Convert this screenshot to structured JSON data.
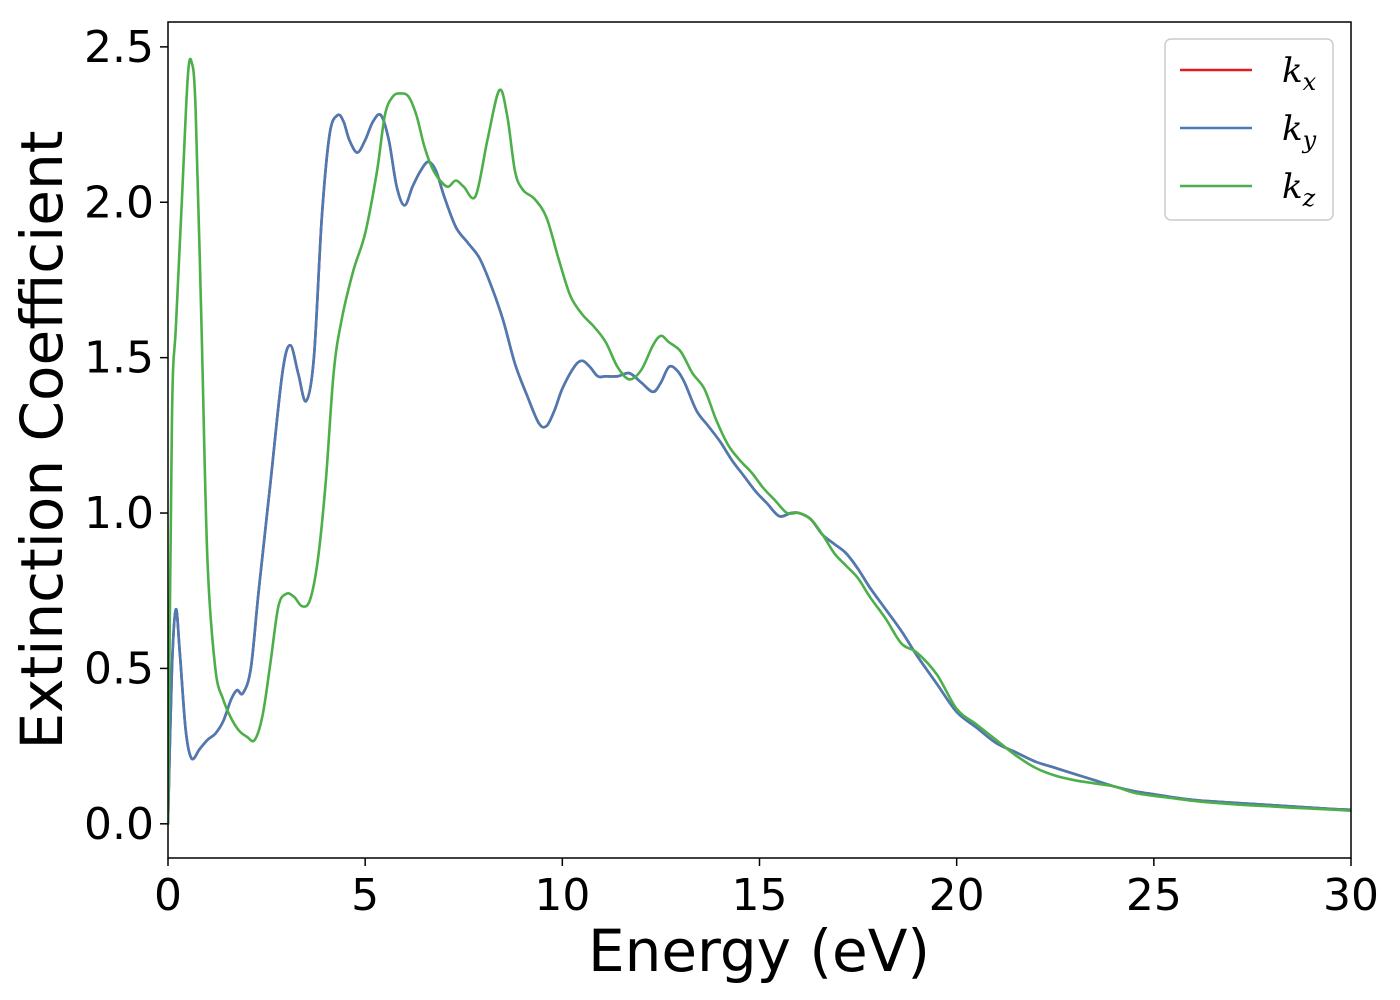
{
  "chart_data": {
    "type": "line",
    "title": "",
    "xlabel": "Energy (eV)",
    "ylabel": "Extinction Coefficient",
    "xlim": [
      0,
      30
    ],
    "ylim": [
      -0.11,
      2.58
    ],
    "xticks": [
      0,
      5,
      10,
      15,
      20,
      25,
      30
    ],
    "xtick_labels": [
      "0",
      "5",
      "10",
      "15",
      "20",
      "25",
      "30"
    ],
    "yticks": [
      0.0,
      0.5,
      1.0,
      1.5,
      2.0,
      2.5
    ],
    "ytick_labels": [
      "0.0",
      "0.5",
      "1.0",
      "1.5",
      "2.0",
      "2.5"
    ],
    "grid": false,
    "legend_position": "top-right",
    "series": [
      {
        "name": "k_x",
        "label_base": "k",
        "label_sub": "x",
        "color": "#e41a1c",
        "x": [
          0,
          0.1,
          0.2,
          0.3,
          0.45,
          0.6,
          0.8,
          1.0,
          1.2,
          1.4,
          1.6,
          1.75,
          1.9,
          2.1,
          2.3,
          2.6,
          2.9,
          3.1,
          3.3,
          3.5,
          3.7,
          3.9,
          4.1,
          4.3,
          4.45,
          4.6,
          4.8,
          5.0,
          5.2,
          5.4,
          5.6,
          5.8,
          6.0,
          6.2,
          6.4,
          6.6,
          6.8,
          7.0,
          7.3,
          7.6,
          7.9,
          8.2,
          8.5,
          8.8,
          9.1,
          9.4,
          9.6,
          9.8,
          10.0,
          10.3,
          10.5,
          10.7,
          10.9,
          11.1,
          11.4,
          11.7,
          12.0,
          12.3,
          12.5,
          12.7,
          12.9,
          13.1,
          13.4,
          13.7,
          14.0,
          14.3,
          14.6,
          14.9,
          15.2,
          15.5,
          15.8,
          16.0,
          16.3,
          16.6,
          16.9,
          17.2,
          17.5,
          17.8,
          18.2,
          18.6,
          19.0,
          19.5,
          20.0,
          20.5,
          21.0,
          21.5,
          22.0,
          22.5,
          23.0,
          23.5,
          24.0,
          24.5,
          25.0,
          25.5,
          26.0,
          26.5,
          27.0,
          27.5,
          28.0,
          28.5,
          29.0,
          29.5,
          30.0
        ],
        "y": [
          0.0,
          0.5,
          0.69,
          0.55,
          0.3,
          0.21,
          0.24,
          0.27,
          0.29,
          0.33,
          0.4,
          0.43,
          0.42,
          0.5,
          0.75,
          1.1,
          1.45,
          1.54,
          1.45,
          1.36,
          1.5,
          1.95,
          2.22,
          2.28,
          2.26,
          2.2,
          2.16,
          2.2,
          2.26,
          2.28,
          2.2,
          2.05,
          1.99,
          2.05,
          2.1,
          2.13,
          2.1,
          2.02,
          1.92,
          1.87,
          1.82,
          1.73,
          1.62,
          1.48,
          1.38,
          1.29,
          1.28,
          1.33,
          1.4,
          1.47,
          1.49,
          1.47,
          1.44,
          1.44,
          1.44,
          1.45,
          1.42,
          1.39,
          1.42,
          1.47,
          1.46,
          1.42,
          1.33,
          1.28,
          1.23,
          1.17,
          1.12,
          1.07,
          1.03,
          0.99,
          1.0,
          1.0,
          0.98,
          0.93,
          0.9,
          0.87,
          0.82,
          0.76,
          0.69,
          0.62,
          0.54,
          0.45,
          0.36,
          0.31,
          0.26,
          0.23,
          0.2,
          0.18,
          0.16,
          0.14,
          0.12,
          0.105,
          0.095,
          0.085,
          0.077,
          0.072,
          0.068,
          0.064,
          0.06,
          0.056,
          0.052,
          0.048,
          0.045
        ]
      },
      {
        "name": "k_y",
        "label_base": "k",
        "label_sub": "y",
        "color": "#4a7bb5",
        "x": [
          0,
          0.1,
          0.2,
          0.3,
          0.45,
          0.6,
          0.8,
          1.0,
          1.2,
          1.4,
          1.6,
          1.75,
          1.9,
          2.1,
          2.3,
          2.6,
          2.9,
          3.1,
          3.3,
          3.5,
          3.7,
          3.9,
          4.1,
          4.3,
          4.45,
          4.6,
          4.8,
          5.0,
          5.2,
          5.4,
          5.6,
          5.8,
          6.0,
          6.2,
          6.4,
          6.6,
          6.8,
          7.0,
          7.3,
          7.6,
          7.9,
          8.2,
          8.5,
          8.8,
          9.1,
          9.4,
          9.6,
          9.8,
          10.0,
          10.3,
          10.5,
          10.7,
          10.9,
          11.1,
          11.4,
          11.7,
          12.0,
          12.3,
          12.5,
          12.7,
          12.9,
          13.1,
          13.4,
          13.7,
          14.0,
          14.3,
          14.6,
          14.9,
          15.2,
          15.5,
          15.8,
          16.0,
          16.3,
          16.6,
          16.9,
          17.2,
          17.5,
          17.8,
          18.2,
          18.6,
          19.0,
          19.5,
          20.0,
          20.5,
          21.0,
          21.5,
          22.0,
          22.5,
          23.0,
          23.5,
          24.0,
          24.5,
          25.0,
          25.5,
          26.0,
          26.5,
          27.0,
          27.5,
          28.0,
          28.5,
          29.0,
          29.5,
          30.0
        ],
        "y": [
          0.0,
          0.5,
          0.69,
          0.55,
          0.3,
          0.21,
          0.24,
          0.27,
          0.29,
          0.33,
          0.4,
          0.43,
          0.42,
          0.5,
          0.75,
          1.1,
          1.45,
          1.54,
          1.45,
          1.36,
          1.5,
          1.95,
          2.22,
          2.28,
          2.26,
          2.2,
          2.16,
          2.2,
          2.26,
          2.28,
          2.2,
          2.05,
          1.99,
          2.05,
          2.1,
          2.13,
          2.1,
          2.02,
          1.92,
          1.87,
          1.82,
          1.73,
          1.62,
          1.48,
          1.38,
          1.29,
          1.28,
          1.33,
          1.4,
          1.47,
          1.49,
          1.47,
          1.44,
          1.44,
          1.44,
          1.45,
          1.42,
          1.39,
          1.42,
          1.47,
          1.46,
          1.42,
          1.33,
          1.28,
          1.23,
          1.17,
          1.12,
          1.07,
          1.03,
          0.99,
          1.0,
          1.0,
          0.98,
          0.93,
          0.9,
          0.87,
          0.82,
          0.76,
          0.69,
          0.62,
          0.54,
          0.45,
          0.36,
          0.31,
          0.26,
          0.23,
          0.2,
          0.18,
          0.16,
          0.14,
          0.12,
          0.105,
          0.095,
          0.085,
          0.077,
          0.072,
          0.068,
          0.064,
          0.06,
          0.056,
          0.052,
          0.048,
          0.045
        ]
      },
      {
        "name": "k_z",
        "label_base": "k",
        "label_sub": "z",
        "color": "#4daf4a",
        "x": [
          0,
          0.1,
          0.2,
          0.35,
          0.5,
          0.6,
          0.7,
          0.85,
          1.0,
          1.2,
          1.4,
          1.6,
          1.8,
          2.0,
          2.2,
          2.4,
          2.6,
          2.8,
          3.0,
          3.2,
          3.4,
          3.6,
          3.8,
          4.0,
          4.2,
          4.4,
          4.7,
          5.0,
          5.3,
          5.5,
          5.7,
          5.9,
          6.1,
          6.3,
          6.5,
          6.7,
          6.9,
          7.1,
          7.3,
          7.5,
          7.8,
          8.1,
          8.4,
          8.6,
          8.8,
          9.0,
          9.3,
          9.6,
          9.9,
          10.2,
          10.5,
          10.8,
          11.1,
          11.4,
          11.7,
          12.0,
          12.3,
          12.5,
          12.7,
          13.0,
          13.3,
          13.6,
          13.9,
          14.2,
          14.5,
          14.8,
          15.1,
          15.4,
          15.7,
          16.0,
          16.3,
          16.6,
          16.9,
          17.2,
          17.5,
          17.8,
          18.2,
          18.6,
          19.0,
          19.5,
          20.0,
          20.5,
          21.0,
          21.5,
          22.0,
          22.5,
          23.0,
          23.5,
          24.0,
          24.5,
          25.0,
          25.5,
          26.0,
          26.5,
          27.0,
          27.5,
          28.0,
          28.5,
          29.0,
          29.5,
          30.0
        ],
        "y": [
          0.0,
          1.3,
          1.6,
          2.0,
          2.4,
          2.45,
          2.3,
          1.6,
          0.85,
          0.5,
          0.4,
          0.34,
          0.3,
          0.28,
          0.27,
          0.35,
          0.52,
          0.7,
          0.74,
          0.73,
          0.7,
          0.72,
          0.85,
          1.1,
          1.45,
          1.62,
          1.78,
          1.9,
          2.1,
          2.28,
          2.34,
          2.35,
          2.34,
          2.28,
          2.18,
          2.11,
          2.07,
          2.05,
          2.07,
          2.05,
          2.02,
          2.2,
          2.36,
          2.28,
          2.1,
          2.04,
          2.01,
          1.95,
          1.82,
          1.7,
          1.64,
          1.6,
          1.55,
          1.47,
          1.43,
          1.46,
          1.54,
          1.57,
          1.55,
          1.52,
          1.45,
          1.4,
          1.3,
          1.22,
          1.17,
          1.13,
          1.08,
          1.04,
          1.0,
          1.0,
          0.98,
          0.93,
          0.87,
          0.83,
          0.79,
          0.73,
          0.66,
          0.58,
          0.55,
          0.48,
          0.37,
          0.32,
          0.27,
          0.22,
          0.18,
          0.155,
          0.14,
          0.13,
          0.12,
          0.1,
          0.09,
          0.082,
          0.074,
          0.068,
          0.063,
          0.059,
          0.056,
          0.052,
          0.049,
          0.046,
          0.042
        ]
      }
    ]
  }
}
